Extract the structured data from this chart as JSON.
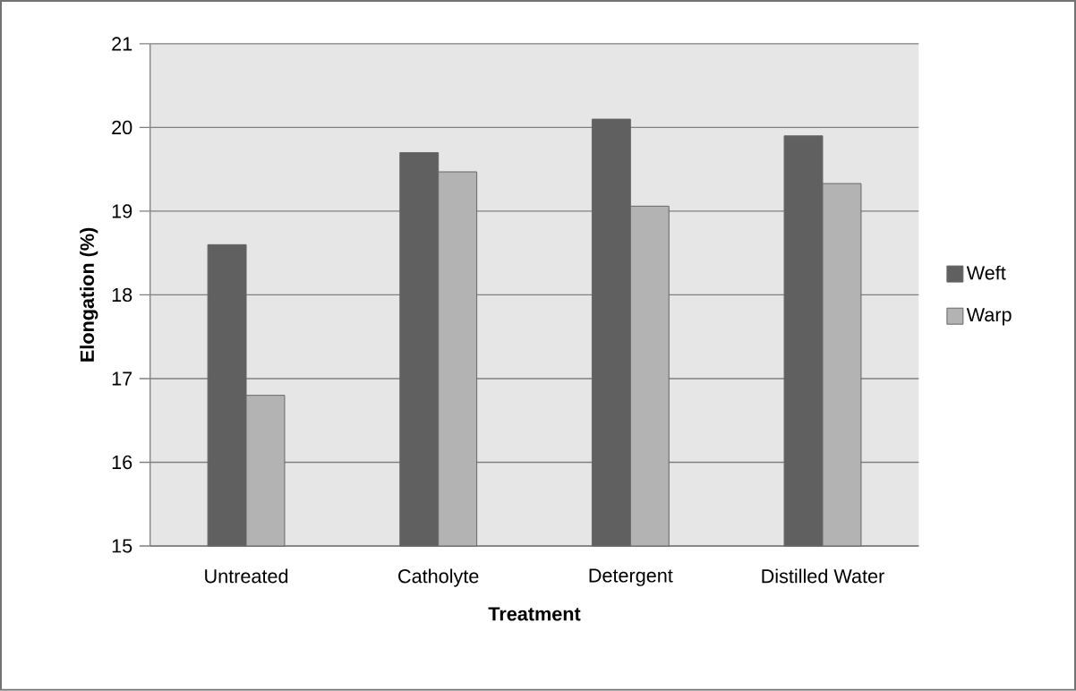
{
  "chart_data": {
    "type": "bar",
    "xlabel": "Treatment",
    "ylabel": "Elongation (%)",
    "categories": [
      "Untreated",
      "Catholyte",
      "Detergent",
      "Distilled Water"
    ],
    "series": [
      {
        "name": "Weft",
        "color": "#606060",
        "values": [
          18.6,
          19.7,
          20.1,
          19.9
        ]
      },
      {
        "name": "Warp",
        "color": "#b3b3b3",
        "values": [
          16.8,
          19.47,
          19.06,
          19.33
        ]
      }
    ],
    "ylim": [
      15,
      21
    ],
    "yticks": [
      15,
      16,
      17,
      18,
      19,
      20,
      21
    ],
    "grid": "y",
    "legend": "right"
  }
}
